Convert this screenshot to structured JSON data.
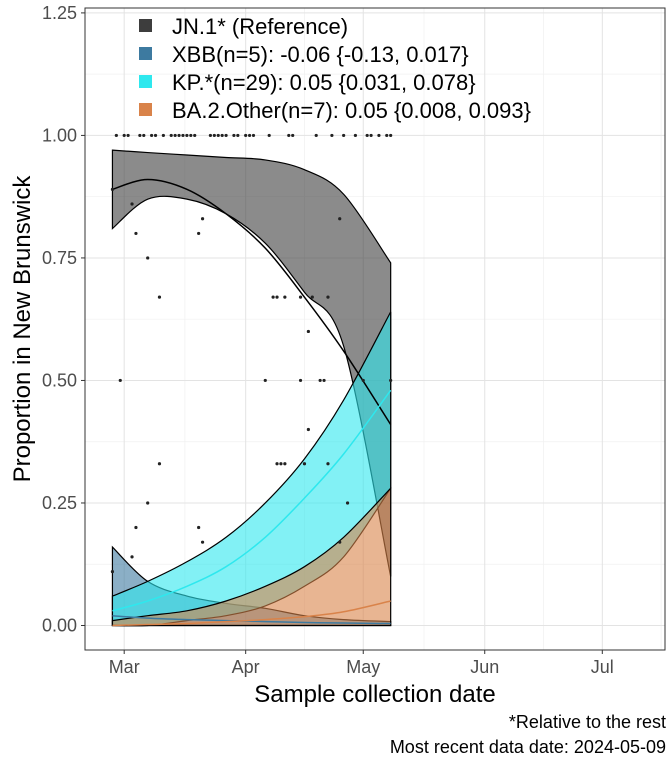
{
  "chart_data": {
    "type": "line",
    "xlabel": "Sample collection date",
    "ylabel": "Proportion in New Brunswick",
    "xlim": [
      "2024-02-20",
      "2024-07-17"
    ],
    "ylim": [
      -0.05,
      1.26
    ],
    "x_ticks": [
      {
        "date": "2024-03-01",
        "label": "Mar"
      },
      {
        "date": "2024-04-01",
        "label": "Apr"
      },
      {
        "date": "2024-05-01",
        "label": "May"
      },
      {
        "date": "2024-06-01",
        "label": "Jun"
      },
      {
        "date": "2024-07-01",
        "label": "Jul"
      }
    ],
    "y_ticks": [
      {
        "value": 0.0,
        "label": "0.00"
      },
      {
        "value": 0.25,
        "label": "0.25"
      },
      {
        "value": 0.5,
        "label": "0.50"
      },
      {
        "value": 0.75,
        "label": "0.75"
      },
      {
        "value": 1.0,
        "label": "1.00"
      },
      {
        "value": 1.25,
        "label": "1.25"
      }
    ],
    "grid": true,
    "legend_position": "top-left",
    "series": [
      {
        "name": "JN.1* (Reference)",
        "color": "#3d3d3d",
        "x": [
          "2024-02-27",
          "2024-03-07",
          "2024-03-17",
          "2024-03-27",
          "2024-04-06",
          "2024-04-16",
          "2024-04-26",
          "2024-05-08"
        ],
        "fit": [
          0.89,
          0.91,
          0.89,
          0.84,
          0.77,
          0.67,
          0.56,
          0.41
        ],
        "lower": [
          0.81,
          0.87,
          0.87,
          0.84,
          0.78,
          0.68,
          0.57,
          0.1
        ],
        "upper": [
          0.97,
          0.965,
          0.96,
          0.955,
          0.95,
          0.93,
          0.88,
          0.74
        ]
      },
      {
        "name": "XBB(n=5): -0.06 {-0.13, 0.017}",
        "color": "#3d7aa0",
        "x": [
          "2024-02-27",
          "2024-03-07",
          "2024-03-17",
          "2024-03-27",
          "2024-04-06",
          "2024-04-16",
          "2024-04-26",
          "2024-05-08"
        ],
        "fit": [
          0.02,
          0.015,
          0.012,
          0.01,
          0.008,
          0.006,
          0.005,
          0.004
        ],
        "lower": [
          0.0,
          0.0,
          0.0,
          0.0,
          0.0,
          0.0,
          0.0,
          0.0
        ],
        "upper": [
          0.16,
          0.09,
          0.06,
          0.045,
          0.035,
          0.02,
          0.012,
          0.008
        ]
      },
      {
        "name": "KP.*(n=29): 0.05 {0.031, 0.078}",
        "color": "#2ee8ee",
        "x": [
          "2024-02-27",
          "2024-03-07",
          "2024-03-17",
          "2024-03-27",
          "2024-04-06",
          "2024-04-16",
          "2024-04-26",
          "2024-05-08"
        ],
        "fit": [
          0.03,
          0.05,
          0.08,
          0.12,
          0.18,
          0.26,
          0.35,
          0.48
        ],
        "lower": [
          0.0,
          0.0,
          0.01,
          0.02,
          0.04,
          0.08,
          0.14,
          0.28
        ],
        "upper": [
          0.06,
          0.09,
          0.13,
          0.18,
          0.25,
          0.34,
          0.46,
          0.64
        ]
      },
      {
        "name": "BA.2.Other(n=7): 0.05 {0.008, 0.093}",
        "color": "#d9834a",
        "x": [
          "2024-02-27",
          "2024-03-07",
          "2024-03-17",
          "2024-03-27",
          "2024-04-06",
          "2024-04-16",
          "2024-04-26",
          "2024-05-08"
        ],
        "fit": [
          0.0,
          0.002,
          0.004,
          0.008,
          0.012,
          0.018,
          0.028,
          0.05
        ],
        "lower": [
          0.0,
          0.0,
          0.0,
          0.0,
          0.0,
          0.0,
          0.0,
          0.0
        ],
        "upper": [
          0.01,
          0.02,
          0.03,
          0.05,
          0.08,
          0.12,
          0.18,
          0.28
        ]
      }
    ],
    "points": [
      {
        "x": "2024-02-27",
        "y": 0.89
      },
      {
        "x": "2024-02-27",
        "y": 0.11
      },
      {
        "x": "2024-02-28",
        "y": 1.0
      },
      {
        "x": "2024-02-29",
        "y": 0.5
      },
      {
        "x": "2024-03-01",
        "y": 1.0
      },
      {
        "x": "2024-03-02",
        "y": 1.0
      },
      {
        "x": "2024-03-03",
        "y": 0.86
      },
      {
        "x": "2024-03-03",
        "y": 0.14
      },
      {
        "x": "2024-03-04",
        "y": 0.8
      },
      {
        "x": "2024-03-04",
        "y": 0.2
      },
      {
        "x": "2024-03-05",
        "y": 1.0
      },
      {
        "x": "2024-03-06",
        "y": 1.0
      },
      {
        "x": "2024-03-07",
        "y": 0.75
      },
      {
        "x": "2024-03-07",
        "y": 0.25
      },
      {
        "x": "2024-03-08",
        "y": 1.0
      },
      {
        "x": "2024-03-09",
        "y": 1.0
      },
      {
        "x": "2024-03-10",
        "y": 0.67
      },
      {
        "x": "2024-03-10",
        "y": 0.33
      },
      {
        "x": "2024-03-11",
        "y": 1.0
      },
      {
        "x": "2024-03-13",
        "y": 1.0
      },
      {
        "x": "2024-03-14",
        "y": 1.0
      },
      {
        "x": "2024-03-15",
        "y": 1.0
      },
      {
        "x": "2024-03-16",
        "y": 1.0
      },
      {
        "x": "2024-03-17",
        "y": 1.0
      },
      {
        "x": "2024-03-18",
        "y": 1.0
      },
      {
        "x": "2024-03-19",
        "y": 1.0
      },
      {
        "x": "2024-03-20",
        "y": 0.8
      },
      {
        "x": "2024-03-20",
        "y": 0.2
      },
      {
        "x": "2024-03-21",
        "y": 0.83
      },
      {
        "x": "2024-03-21",
        "y": 0.17
      },
      {
        "x": "2024-03-23",
        "y": 1.0
      },
      {
        "x": "2024-03-24",
        "y": 1.0
      },
      {
        "x": "2024-03-25",
        "y": 1.0
      },
      {
        "x": "2024-03-26",
        "y": 1.0
      },
      {
        "x": "2024-03-27",
        "y": 1.0
      },
      {
        "x": "2024-03-29",
        "y": 1.0
      },
      {
        "x": "2024-03-30",
        "y": 1.0
      },
      {
        "x": "2024-04-01",
        "y": 1.0
      },
      {
        "x": "2024-04-02",
        "y": 1.0
      },
      {
        "x": "2024-04-03",
        "y": 1.0
      },
      {
        "x": "2024-04-06",
        "y": 0.5
      },
      {
        "x": "2024-04-07",
        "y": 1.0
      },
      {
        "x": "2024-04-08",
        "y": 0.67
      },
      {
        "x": "2024-04-09",
        "y": 0.33
      },
      {
        "x": "2024-04-09",
        "y": 0.67
      },
      {
        "x": "2024-04-10",
        "y": 0.33
      },
      {
        "x": "2024-04-11",
        "y": 0.67
      },
      {
        "x": "2024-04-11",
        "y": 0.33
      },
      {
        "x": "2024-04-12",
        "y": 1.0
      },
      {
        "x": "2024-04-13",
        "y": 1.0
      },
      {
        "x": "2024-04-15",
        "y": 0.67
      },
      {
        "x": "2024-04-15",
        "y": 0.5
      },
      {
        "x": "2024-04-16",
        "y": 0.33
      },
      {
        "x": "2024-04-17",
        "y": 0.6
      },
      {
        "x": "2024-04-17",
        "y": 0.4
      },
      {
        "x": "2024-04-18",
        "y": 0.67
      },
      {
        "x": "2024-04-19",
        "y": 1.0
      },
      {
        "x": "2024-04-20",
        "y": 0.5
      },
      {
        "x": "2024-04-21",
        "y": 0.5
      },
      {
        "x": "2024-04-22",
        "y": 0.67
      },
      {
        "x": "2024-04-22",
        "y": 0.33
      },
      {
        "x": "2024-04-23",
        "y": 1.0
      },
      {
        "x": "2024-04-25",
        "y": 0.83
      },
      {
        "x": "2024-04-25",
        "y": 0.17
      },
      {
        "x": "2024-04-26",
        "y": 1.0
      },
      {
        "x": "2024-04-27",
        "y": 0.25
      },
      {
        "x": "2024-04-29",
        "y": 1.0
      },
      {
        "x": "2024-05-01",
        "y": 0.5
      },
      {
        "x": "2024-05-02",
        "y": 1.0
      },
      {
        "x": "2024-05-03",
        "y": 1.0
      },
      {
        "x": "2024-05-05",
        "y": 1.0
      },
      {
        "x": "2024-05-07",
        "y": 1.0
      },
      {
        "x": "2024-05-08",
        "y": 1.0
      },
      {
        "x": "2024-05-08",
        "y": 0.5
      }
    ]
  },
  "caption": {
    "line1": "*Relative to the rest",
    "line2": "Most recent data date: 2024-05-09"
  }
}
